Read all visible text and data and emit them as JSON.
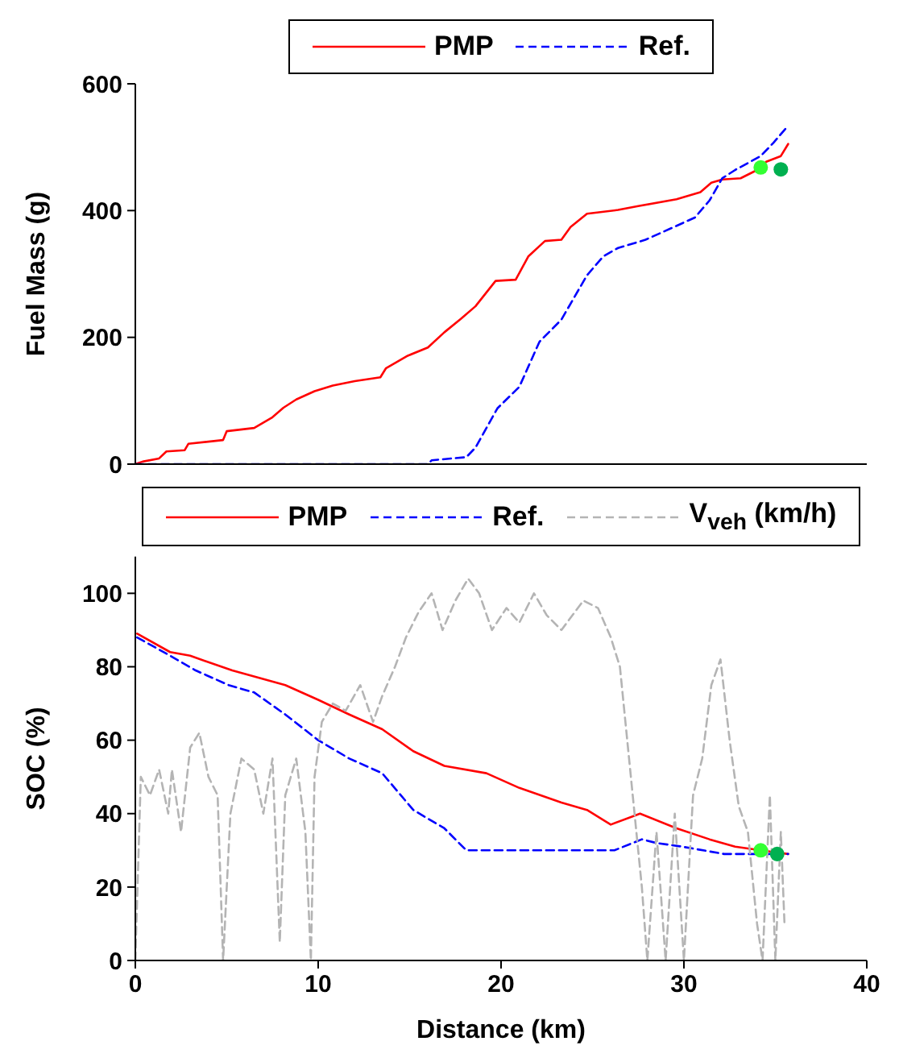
{
  "chart_data": [
    {
      "type": "line",
      "ylabel": "Fuel Mass (g)",
      "xlim": [
        0,
        40
      ],
      "xticks": [
        0,
        10,
        20,
        30,
        40
      ],
      "ylim": [
        0,
        600
      ],
      "yticks": [
        0,
        200,
        400,
        600
      ],
      "tick_labels": "y",
      "legend": "top",
      "series": [
        {
          "name": "PMP",
          "color": "#ff0000",
          "line_style": "solid",
          "marker": "none",
          "x": [
            0,
            0.4,
            1.3,
            1.7,
            2.7,
            2.9,
            4.8,
            5.0,
            6.5,
            7.5,
            8.1,
            8.8,
            9.8,
            10.8,
            12.0,
            13.4,
            13.7,
            14.9,
            16.0,
            16.9,
            17.8,
            18.6,
            19.7,
            20.8,
            21.5,
            22.4,
            23.3,
            23.8,
            24.7,
            26.4,
            27.5,
            29.6,
            30.9,
            31.5,
            32.1,
            33.1,
            34.0,
            34.5,
            35.3,
            35.7
          ],
          "values": [
            0,
            4,
            9,
            20,
            22,
            32,
            38,
            52,
            57,
            74,
            89,
            102,
            115,
            124,
            131,
            137,
            151,
            171,
            184,
            208,
            229,
            249,
            289,
            291,
            328,
            352,
            354,
            374,
            395,
            401,
            407,
            418,
            429,
            444,
            449,
            451,
            464,
            477,
            486,
            505
          ]
        },
        {
          "name": "Ref.",
          "color": "#0000ff",
          "line_style": "dashed",
          "marker": "none",
          "x": [
            0,
            16.0,
            16.2,
            18.1,
            18.6,
            19.8,
            21.0,
            22.1,
            23.3,
            24.7,
            25.6,
            26.4,
            27.9,
            29.6,
            30.6,
            31.4,
            32.1,
            32.8,
            34.2,
            34.9,
            35.7
          ],
          "values": [
            0,
            0,
            6,
            11,
            26,
            88,
            122,
            193,
            228,
            298,
            328,
            341,
            354,
            376,
            389,
            416,
            451,
            464,
            486,
            507,
            534
          ]
        },
        {
          "type": "scatter",
          "color": "#33ff33",
          "marker": "circle",
          "x": [
            34.2
          ],
          "values": [
            468
          ]
        },
        {
          "type": "scatter",
          "color": "#00b050",
          "marker": "circle",
          "x": [
            35.3
          ],
          "values": [
            465
          ]
        }
      ]
    },
    {
      "type": "line",
      "xlabel": "Distance (km)",
      "ylabel": "SOC (%)",
      "xlim": [
        0,
        40
      ],
      "xticks": [
        0,
        10,
        20,
        30,
        40
      ],
      "ylim": [
        0,
        110
      ],
      "yticks": [
        0,
        20,
        40,
        60,
        80,
        100
      ],
      "legend": "top",
      "series": [
        {
          "name": "PMP",
          "color": "#ff0000",
          "line_style": "solid",
          "marker": "none",
          "x": [
            0.1,
            1.9,
            3.0,
            5.3,
            8.2,
            10.0,
            11.7,
            13.5,
            15.2,
            16.9,
            19.2,
            21.0,
            23.3,
            24.7,
            26.0,
            27.6,
            29.6,
            31.4,
            32.8,
            34.2,
            35.7
          ],
          "values": [
            89,
            84,
            83,
            79,
            75,
            71,
            67,
            63,
            57,
            53,
            51,
            47,
            43,
            41,
            37,
            40,
            36,
            33,
            31,
            30,
            29
          ]
        },
        {
          "name": "Ref.",
          "color": "#0000ff",
          "line_style": "dashed",
          "marker": "none",
          "x": [
            0.1,
            1.9,
            3.3,
            5.1,
            6.5,
            8.2,
            10.0,
            11.7,
            13.5,
            15.2,
            16.9,
            18.1,
            26.2,
            27.7,
            28.5,
            29.9,
            32.2,
            35.7
          ],
          "values": [
            88,
            83,
            79,
            75,
            73,
            67,
            60,
            55,
            51,
            41,
            36,
            30,
            30,
            33,
            32,
            31,
            29,
            29
          ]
        },
        {
          "name": "V$_{veh}$ (km/h)",
          "color": "#b4b4b4",
          "line_style": "dashed",
          "marker": "none",
          "x": [
            0,
            0.3,
            0.8,
            1.3,
            1.8,
            2.0,
            2.5,
            3.0,
            3.5,
            4.0,
            4.5,
            4.8,
            5.2,
            5.8,
            6.5,
            7.0,
            7.5,
            7.9,
            8.2,
            8.8,
            9.3,
            9.6,
            9.8,
            10.2,
            10.8,
            11.5,
            12.3,
            13.0,
            13.5,
            14.2,
            14.8,
            15.5,
            16.2,
            16.8,
            17.5,
            18.2,
            18.8,
            19.5,
            20.3,
            21.0,
            21.8,
            22.5,
            23.3,
            24.5,
            25.3,
            26.0,
            26.5,
            27.0,
            27.3,
            27.7,
            28.0,
            28.5,
            29.0,
            29.5,
            30.0,
            30.5,
            31.0,
            31.5,
            32.0,
            32.5,
            33.0,
            33.5,
            34.0,
            34.3,
            34.7,
            35.0,
            35.3,
            35.5
          ],
          "values": [
            0,
            50,
            45,
            52,
            40,
            52,
            35,
            58,
            62,
            50,
            45,
            0,
            40,
            55,
            52,
            40,
            55,
            5,
            45,
            55,
            35,
            0,
            50,
            65,
            70,
            68,
            75,
            65,
            72,
            80,
            88,
            95,
            100,
            90,
            98,
            104,
            100,
            90,
            96,
            92,
            100,
            94,
            90,
            98,
            96,
            88,
            80,
            55,
            40,
            20,
            0,
            35,
            0,
            40,
            0,
            45,
            55,
            75,
            82,
            60,
            42,
            35,
            10,
            0,
            45,
            0,
            35,
            10
          ]
        },
        {
          "type": "scatter",
          "color": "#33ff33",
          "marker": "circle",
          "x": [
            34.2
          ],
          "values": [
            30
          ]
        },
        {
          "type": "scatter",
          "color": "#00b050",
          "marker": "circle",
          "x": [
            35.1
          ],
          "values": [
            29
          ]
        }
      ]
    }
  ]
}
